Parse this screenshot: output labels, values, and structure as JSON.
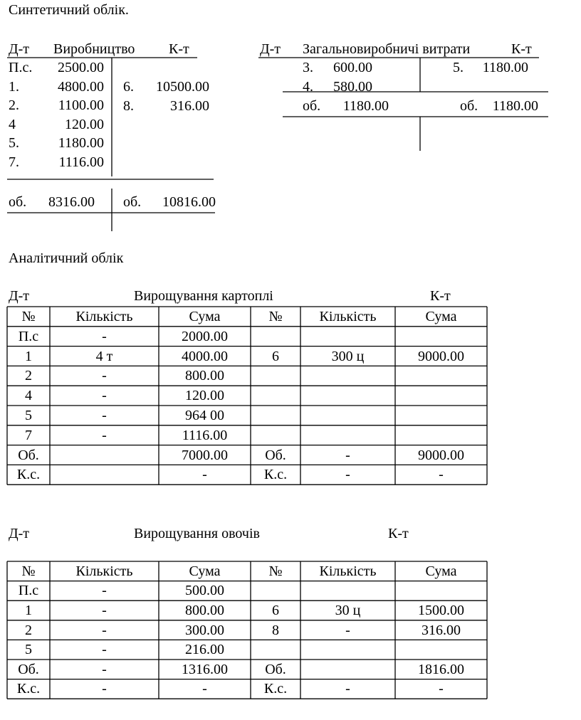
{
  "title": "Синтетичний облік.",
  "t_account_1": {
    "debit_label": "Д-т",
    "name": "Виробництво",
    "credit_label": "К-т",
    "debit_rows": [
      [
        "П.с.",
        "2500.00"
      ],
      [
        "1.",
        "4800.00"
      ],
      [
        "2.",
        "1100.00"
      ],
      [
        "4",
        "120.00"
      ],
      [
        "5.",
        "1180.00"
      ],
      [
        "7.",
        "1116.00"
      ]
    ],
    "credit_rows": [
      [
        "6.",
        "10500.00"
      ],
      [
        "8.",
        "316.00"
      ]
    ],
    "debit_total": [
      "об.",
      "8316.00"
    ],
    "credit_total": [
      "об.",
      "10816.00"
    ]
  },
  "t_account_2": {
    "debit_label": "Д-т",
    "name": "Загальновиробничі витрати",
    "credit_label": "К-т",
    "debit_rows": [
      [
        "3.",
        "600.00"
      ],
      [
        "4.",
        "580.00"
      ]
    ],
    "credit_rows": [
      [
        "5.",
        "1180.00"
      ]
    ],
    "debit_total": [
      "об.",
      "1180.00"
    ],
    "credit_total": [
      "об.",
      "1180.00"
    ]
  },
  "analytic_title": "Аналітичний облік",
  "table_1": {
    "debit_label": "Д-т",
    "title": "Вирощування картоплі",
    "credit_label": "К-т",
    "header": [
      "№",
      "Кількість",
      "Сума",
      "№",
      "Кількість",
      "Сума"
    ],
    "rows": [
      [
        "П.с",
        "-",
        "2000.00",
        null,
        null,
        null
      ],
      [
        "1",
        "4 т",
        "4000.00",
        "6",
        "300 ц",
        "9000.00"
      ],
      [
        "2",
        "-",
        "800.00",
        null,
        null,
        null
      ],
      [
        "4",
        "-",
        "120.00",
        null,
        null,
        null
      ],
      [
        "5",
        "-",
        "964 00",
        null,
        null,
        null
      ],
      [
        "7",
        "-",
        "1116.00",
        null,
        null,
        null
      ],
      [
        "Об.",
        null,
        "7000.00",
        "Об.",
        "-",
        "9000.00"
      ],
      [
        "К.с.",
        null,
        "-",
        "К.с.",
        "-",
        "-"
      ]
    ]
  },
  "table_2": {
    "debit_label": "Д-т",
    "title": "Вирощування овочів",
    "credit_label": "К-т",
    "header": [
      "№",
      "Кількість",
      "Сума",
      "№",
      "Кількість",
      "Сума"
    ],
    "rows": [
      [
        "П.с",
        "-",
        "500.00",
        null,
        null,
        null
      ],
      [
        "1",
        "-",
        "800.00",
        "6",
        "30 ц",
        "1500.00"
      ],
      [
        "2",
        "-",
        "300.00",
        "8",
        "-",
        "316.00"
      ],
      [
        "5",
        "-",
        "216.00",
        null,
        null,
        null
      ],
      [
        "Об.",
        "-",
        "1316.00",
        "Об.",
        null,
        "1816.00"
      ],
      [
        "К.с.",
        "-",
        "-",
        "К.с.",
        "-",
        "-"
      ]
    ]
  }
}
